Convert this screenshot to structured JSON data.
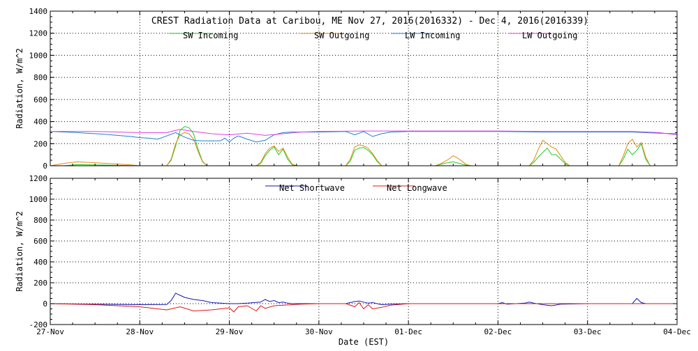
{
  "chart_data": [
    {
      "type": "line",
      "title": "CREST Radiation Data at Caribou, ME   Nov 27, 2016(2016332) - Dec  4, 2016(2016339)",
      "ylabel": "Radiation, W/m^2",
      "ylim": [
        0,
        1400
      ],
      "yticks": [
        "0",
        "200",
        "400",
        "600",
        "800",
        "1000",
        "1200",
        "1400"
      ],
      "xlim": [
        0,
        7
      ],
      "grid": true,
      "legend_position": "top",
      "series": [
        {
          "name": "SW Incoming",
          "color": "#22cc22",
          "x": [
            0,
            0.15,
            0.3,
            0.5,
            0.7,
            0.9,
            1.0,
            1.3,
            1.35,
            1.4,
            1.45,
            1.5,
            1.55,
            1.6,
            1.65,
            1.7,
            1.75,
            1.8,
            1.9,
            2.3,
            2.35,
            2.4,
            2.45,
            2.5,
            2.55,
            2.6,
            2.65,
            2.7,
            2.75,
            2.8,
            3.0,
            3.3,
            3.35,
            3.4,
            3.45,
            3.5,
            3.55,
            3.6,
            3.65,
            3.7,
            3.75,
            3.8,
            4.0,
            4.3,
            4.35,
            4.4,
            4.45,
            4.5,
            4.55,
            4.6,
            4.65,
            4.7,
            5.0,
            5.35,
            5.4,
            5.45,
            5.5,
            5.55,
            5.6,
            5.65,
            5.7,
            5.75,
            5.8,
            6.0,
            6.35,
            6.4,
            6.45,
            6.5,
            6.55,
            6.6,
            6.65,
            6.7,
            7.0
          ],
          "values": [
            0,
            0,
            10,
            8,
            5,
            2,
            0,
            0,
            50,
            180,
            320,
            355,
            345,
            290,
            150,
            40,
            0,
            0,
            0,
            0,
            20,
            90,
            140,
            170,
            100,
            150,
            60,
            10,
            0,
            0,
            0,
            0,
            40,
            140,
            160,
            165,
            140,
            100,
            40,
            0,
            0,
            0,
            0,
            0,
            10,
            20,
            30,
            35,
            25,
            15,
            5,
            0,
            0,
            0,
            30,
            80,
            120,
            160,
            100,
            100,
            60,
            20,
            0,
            0,
            0,
            60,
            150,
            100,
            140,
            200,
            60,
            0,
            0
          ]
        },
        {
          "name": "SW Outgoing",
          "color": "#e08a10",
          "x": [
            0,
            0.15,
            0.3,
            0.5,
            0.7,
            0.9,
            1.0,
            1.3,
            1.35,
            1.4,
            1.45,
            1.5,
            1.55,
            1.6,
            1.65,
            1.7,
            1.75,
            1.8,
            1.9,
            2.3,
            2.35,
            2.4,
            2.45,
            2.5,
            2.55,
            2.6,
            2.65,
            2.7,
            2.75,
            2.8,
            3.0,
            3.3,
            3.35,
            3.4,
            3.45,
            3.5,
            3.55,
            3.6,
            3.65,
            3.7,
            3.75,
            3.8,
            4.0,
            4.3,
            4.35,
            4.4,
            4.45,
            4.5,
            4.55,
            4.6,
            4.65,
            4.7,
            5.0,
            5.35,
            5.4,
            5.45,
            5.5,
            5.55,
            5.6,
            5.65,
            5.7,
            5.75,
            5.8,
            6.0,
            6.35,
            6.4,
            6.45,
            6.5,
            6.55,
            6.6,
            6.65,
            6.7,
            7.0
          ],
          "values": [
            0,
            20,
            35,
            28,
            18,
            8,
            0,
            0,
            60,
            200,
            280,
            300,
            290,
            240,
            130,
            35,
            0,
            0,
            0,
            0,
            30,
            110,
            160,
            180,
            130,
            160,
            80,
            15,
            0,
            0,
            0,
            0,
            60,
            170,
            190,
            180,
            160,
            110,
            50,
            0,
            0,
            0,
            0,
            0,
            15,
            35,
            60,
            90,
            70,
            40,
            10,
            0,
            0,
            0,
            50,
            150,
            230,
            200,
            170,
            150,
            90,
            30,
            0,
            0,
            0,
            90,
            200,
            240,
            170,
            210,
            80,
            0,
            0
          ]
        },
        {
          "name": "LW Incoming",
          "color": "#1e7fd0",
          "x": [
            0,
            0.3,
            0.6,
            0.9,
            1.0,
            1.1,
            1.2,
            1.3,
            1.4,
            1.5,
            1.6,
            1.7,
            1.8,
            1.9,
            1.95,
            2.0,
            2.05,
            2.1,
            2.2,
            2.3,
            2.4,
            2.5,
            2.6,
            2.7,
            2.8,
            3.0,
            3.3,
            3.4,
            3.5,
            3.6,
            3.7,
            3.8,
            4.0,
            4.5,
            5.0,
            5.5,
            6.0,
            6.5,
            6.8,
            7.0
          ],
          "values": [
            310,
            300,
            285,
            265,
            255,
            250,
            240,
            270,
            300,
            260,
            230,
            225,
            225,
            225,
            250,
            215,
            250,
            270,
            240,
            215,
            230,
            280,
            300,
            305,
            305,
            305,
            310,
            280,
            310,
            265,
            290,
            305,
            310,
            310,
            310,
            305,
            305,
            305,
            295,
            290
          ]
        },
        {
          "name": "LW Outgoing",
          "color": "#e040e0",
          "x": [
            0,
            0.5,
            1.0,
            1.3,
            1.45,
            1.6,
            1.8,
            2.0,
            2.2,
            2.4,
            2.6,
            2.8,
            3.0,
            3.5,
            4.0,
            4.5,
            5.0,
            5.5,
            6.0,
            6.5,
            6.8,
            7.0
          ],
          "values": [
            310,
            310,
            300,
            300,
            330,
            310,
            290,
            280,
            295,
            275,
            290,
            305,
            310,
            315,
            315,
            315,
            315,
            310,
            310,
            310,
            300,
            280
          ]
        }
      ]
    },
    {
      "type": "line",
      "ylabel": "Radiation, W/m^2",
      "xlabel": "Date (EST)",
      "ylim": [
        -200,
        1200
      ],
      "yticks": [
        "-200",
        "0",
        "200",
        "400",
        "600",
        "800",
        "1000",
        "1200"
      ],
      "xlim": [
        0,
        7
      ],
      "x_tick_labels": [
        "27-Nov",
        "28-Nov",
        "29-Nov",
        "30-Nov",
        "01-Dec",
        "02-Dec",
        "03-Dec",
        "04-Dec"
      ],
      "grid": true,
      "legend_position": "top",
      "series": [
        {
          "name": "Net Shortwave",
          "color": "#1414b4",
          "x": [
            0,
            0.5,
            1.0,
            1.3,
            1.35,
            1.4,
            1.45,
            1.5,
            1.6,
            1.7,
            1.8,
            2.0,
            2.1,
            2.2,
            2.35,
            2.4,
            2.45,
            2.5,
            2.55,
            2.6,
            2.65,
            2.7,
            2.8,
            3.0,
            3.3,
            3.4,
            3.45,
            3.5,
            3.55,
            3.6,
            3.7,
            3.8,
            4.0,
            4.5,
            5.0,
            5.05,
            5.1,
            5.3,
            5.35,
            5.4,
            5.5,
            5.6,
            5.7,
            6.0,
            6.5,
            6.55,
            6.6,
            6.65,
            7.0
          ],
          "values": [
            0,
            -5,
            -10,
            -8,
            30,
            100,
            80,
            60,
            40,
            30,
            10,
            0,
            0,
            5,
            15,
            40,
            20,
            30,
            10,
            15,
            5,
            0,
            0,
            0,
            0,
            20,
            25,
            15,
            5,
            10,
            -10,
            -5,
            0,
            0,
            0,
            10,
            -5,
            5,
            15,
            5,
            -10,
            -20,
            -5,
            0,
            0,
            50,
            10,
            0,
            0
          ]
        },
        {
          "name": "Net Longwave",
          "color": "#e01414",
          "x": [
            0,
            0.5,
            1.0,
            1.2,
            1.3,
            1.45,
            1.6,
            1.8,
            1.9,
            2.0,
            2.05,
            2.1,
            2.2,
            2.3,
            2.35,
            2.4,
            2.5,
            2.6,
            2.8,
            3.0,
            3.3,
            3.4,
            3.45,
            3.5,
            3.55,
            3.6,
            3.7,
            3.8,
            4.0,
            4.5,
            5.0,
            5.5,
            6.0,
            6.5,
            7.0
          ],
          "values": [
            0,
            -10,
            -30,
            -50,
            -60,
            -30,
            -70,
            -60,
            -50,
            -40,
            -80,
            -30,
            -20,
            -70,
            -20,
            -45,
            -20,
            -15,
            -5,
            0,
            0,
            -30,
            10,
            -50,
            -10,
            -50,
            -35,
            -15,
            0,
            0,
            0,
            0,
            0,
            0,
            0
          ]
        }
      ]
    }
  ]
}
